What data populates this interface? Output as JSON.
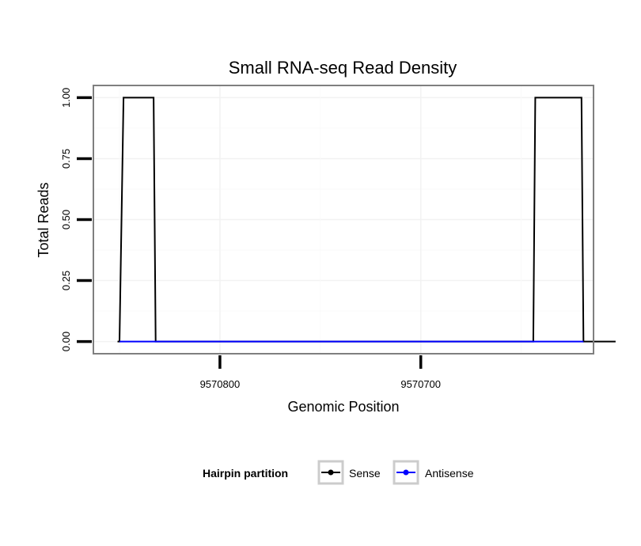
{
  "chart_data": {
    "type": "line",
    "title": "Small RNA-seq Read Density",
    "xlabel": "Genomic Position",
    "ylabel": "Total Reads",
    "x_reversed": true,
    "xlim": [
      9570863,
      9570614
    ],
    "ylim": [
      -0.05,
      1.05
    ],
    "x_ticks": [
      9570800,
      9570700
    ],
    "x_tick_labels": [
      "9570800",
      "9570700"
    ],
    "y_ticks": [
      0,
      0.25,
      0.5,
      0.75,
      1
    ],
    "y_tick_labels": [
      "0.00",
      "0.25",
      "0.50",
      "0.75",
      "1.00"
    ],
    "grid": true,
    "legend": {
      "title": "Hairpin partition",
      "position": "bottom",
      "entries": [
        {
          "label": "Sense",
          "color": "#000000"
        },
        {
          "label": "Antisense",
          "color": "#0000ff"
        }
      ]
    },
    "series": [
      {
        "name": "Sense",
        "color": "#000000",
        "x": [
          9570851,
          9570850,
          9570848,
          9570833,
          9570832,
          9570645,
          9570644,
          9570643,
          9570620,
          9570619,
          9570603
        ],
        "y": [
          0,
          0,
          1,
          1,
          0,
          0,
          0,
          1,
          1,
          0,
          0
        ]
      },
      {
        "name": "Antisense",
        "color": "#0000ff",
        "x": [
          9570850,
          9570832,
          9570644,
          9570619
        ],
        "y": [
          0,
          0,
          0,
          0
        ]
      }
    ]
  }
}
